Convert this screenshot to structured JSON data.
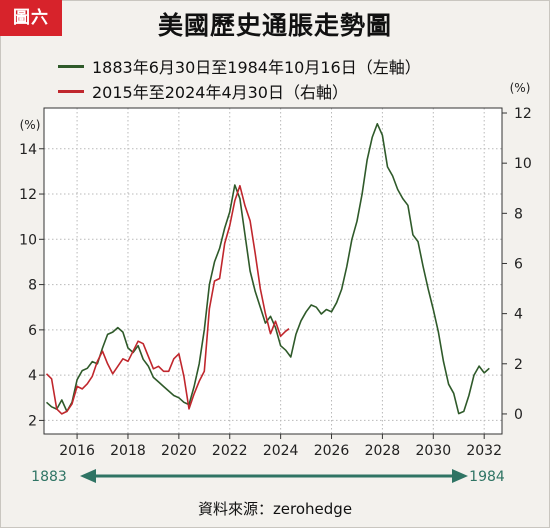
{
  "badge": "圖六",
  "chart_data": {
    "type": "line",
    "title": "美國歷史通脹走勢圖",
    "source": "資料來源：zerohedge",
    "x_ticks": [
      "2016",
      "2018",
      "2020",
      "2022",
      "2024",
      "2026",
      "2028",
      "2030",
      "2032"
    ],
    "x_tick_values": [
      2016,
      2018,
      2020,
      2022,
      2024,
      2026,
      2028,
      2030,
      2032
    ],
    "xlim": [
      2014.7,
      2032.7
    ],
    "left_axis": {
      "unit": "(%)",
      "ylim": [
        1.4,
        15.8
      ],
      "ticks": [
        2,
        4,
        6,
        8,
        10,
        12,
        14
      ]
    },
    "right_axis": {
      "unit": "(%)",
      "ylim": [
        -0.8,
        12.2
      ],
      "ticks": [
        0,
        2,
        4,
        6,
        8,
        10,
        12
      ]
    },
    "timeline": {
      "start_label": "1883",
      "end_label": "1984"
    },
    "grid": true,
    "legend_position": "top-left",
    "series": [
      {
        "name": "1883年6月30日至1984年10月16日（左軸）",
        "axis": "left",
        "color": "#2f5a2a",
        "x": [
          2014.8,
          2015.0,
          2015.2,
          2015.4,
          2015.6,
          2015.8,
          2016.0,
          2016.2,
          2016.4,
          2016.6,
          2016.8,
          2017.0,
          2017.2,
          2017.4,
          2017.6,
          2017.8,
          2018.0,
          2018.2,
          2018.4,
          2018.6,
          2018.8,
          2019.0,
          2019.2,
          2019.4,
          2019.6,
          2019.8,
          2020.0,
          2020.2,
          2020.4,
          2020.6,
          2020.8,
          2021.0,
          2021.2,
          2021.4,
          2021.6,
          2021.8,
          2022.0,
          2022.2,
          2022.4,
          2022.6,
          2022.8,
          2023.0,
          2023.2,
          2023.4,
          2023.6,
          2023.8,
          2024.0,
          2024.2,
          2024.4,
          2024.6,
          2024.8,
          2025.0,
          2025.2,
          2025.4,
          2025.6,
          2025.8,
          2026.0,
          2026.2,
          2026.4,
          2026.6,
          2026.8,
          2027.0,
          2027.2,
          2027.4,
          2027.6,
          2027.8,
          2028.0,
          2028.2,
          2028.4,
          2028.6,
          2028.8,
          2029.0,
          2029.2,
          2029.4,
          2029.6,
          2029.8,
          2030.0,
          2030.2,
          2030.4,
          2030.6,
          2030.8,
          2031.0,
          2031.2,
          2031.4,
          2031.6,
          2031.8,
          2032.0,
          2032.2
        ],
        "values": [
          2.8,
          2.6,
          2.5,
          2.9,
          2.4,
          2.8,
          3.8,
          4.2,
          4.3,
          4.6,
          4.5,
          5.2,
          5.8,
          5.9,
          6.1,
          5.9,
          5.2,
          5.0,
          5.3,
          4.7,
          4.4,
          3.9,
          3.7,
          3.5,
          3.3,
          3.1,
          3.0,
          2.8,
          2.7,
          3.5,
          4.5,
          6.0,
          8.0,
          9.0,
          9.6,
          10.5,
          11.2,
          12.4,
          11.8,
          10.2,
          8.6,
          7.7,
          7.0,
          6.3,
          6.6,
          6.1,
          5.3,
          5.1,
          4.8,
          5.8,
          6.4,
          6.8,
          7.1,
          7.0,
          6.7,
          6.9,
          6.8,
          7.2,
          7.8,
          8.8,
          10.0,
          10.8,
          12.0,
          13.5,
          14.5,
          15.1,
          14.6,
          13.2,
          12.8,
          12.2,
          11.8,
          11.5,
          10.2,
          9.9,
          8.8,
          7.8,
          6.9,
          5.9,
          4.6,
          3.6,
          3.2,
          2.3,
          2.4,
          3.1,
          4.0,
          4.4,
          4.1,
          4.3
        ]
      },
      {
        "name": "2015年至2024年4月30日（右軸）",
        "axis": "right",
        "color": "#c0272d",
        "x": [
          2014.8,
          2015.0,
          2015.2,
          2015.4,
          2015.6,
          2015.8,
          2016.0,
          2016.2,
          2016.4,
          2016.6,
          2016.8,
          2017.0,
          2017.2,
          2017.4,
          2017.6,
          2017.8,
          2018.0,
          2018.2,
          2018.4,
          2018.6,
          2018.8,
          2019.0,
          2019.2,
          2019.4,
          2019.6,
          2019.8,
          2020.0,
          2020.2,
          2020.4,
          2020.6,
          2020.8,
          2021.0,
          2021.2,
          2021.4,
          2021.6,
          2021.8,
          2022.0,
          2022.2,
          2022.4,
          2022.6,
          2022.8,
          2023.0,
          2023.2,
          2023.4,
          2023.6,
          2023.8,
          2024.0,
          2024.2,
          2024.33
        ],
        "values": [
          1.6,
          1.4,
          0.2,
          0.0,
          0.1,
          0.4,
          1.1,
          1.0,
          1.2,
          1.5,
          2.1,
          2.5,
          2.0,
          1.6,
          1.9,
          2.2,
          2.1,
          2.5,
          2.9,
          2.8,
          2.3,
          1.8,
          1.9,
          1.7,
          1.7,
          2.2,
          2.4,
          1.5,
          0.2,
          0.8,
          1.3,
          1.7,
          4.2,
          5.3,
          5.4,
          6.8,
          7.5,
          8.5,
          9.1,
          8.3,
          7.7,
          6.4,
          5.0,
          4.0,
          3.2,
          3.7,
          3.1,
          3.3,
          3.4
        ]
      }
    ]
  }
}
